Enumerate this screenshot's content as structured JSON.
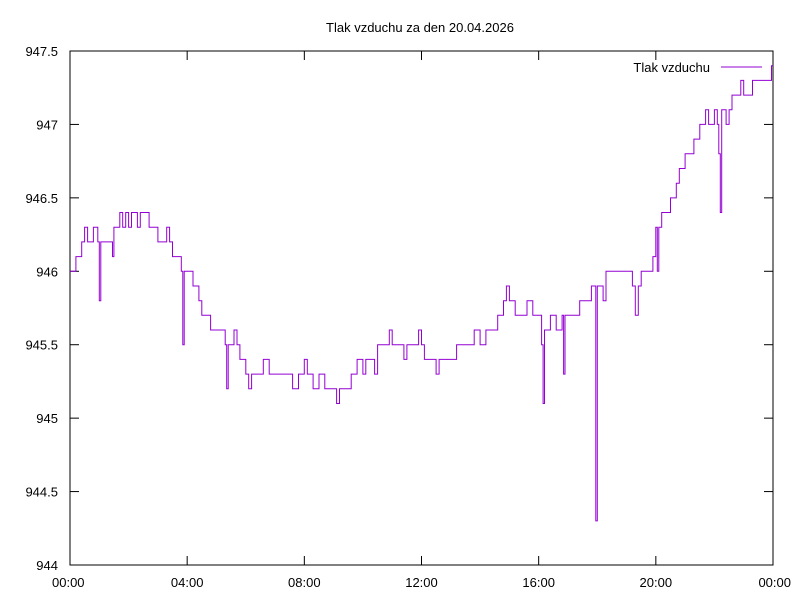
{
  "chart_data": {
    "type": "line",
    "title": "Tlak vzduchu za den 20.04.2026",
    "xlabel": "",
    "ylabel": "",
    "x_ticks": [
      "00:00",
      "04:00",
      "08:00",
      "12:00",
      "16:00",
      "20:00",
      "00:00"
    ],
    "xlim_hours": [
      0,
      24
    ],
    "y_ticks": [
      "944",
      "944.5",
      "945",
      "945.5",
      "946",
      "946.5",
      "947",
      "947.5"
    ],
    "ylim": [
      944,
      947.5
    ],
    "grid": false,
    "legend_position": "top-right",
    "series": [
      {
        "name": "Tlak vzduchu",
        "color": "#9400d3",
        "points": [
          [
            0.0,
            946.0
          ],
          [
            0.2,
            946.1
          ],
          [
            0.4,
            946.2
          ],
          [
            0.5,
            946.3
          ],
          [
            0.6,
            946.2
          ],
          [
            0.8,
            946.3
          ],
          [
            0.95,
            946.2
          ],
          [
            1.0,
            945.8
          ],
          [
            1.05,
            946.2
          ],
          [
            1.2,
            946.2
          ],
          [
            1.4,
            946.2
          ],
          [
            1.45,
            946.1
          ],
          [
            1.5,
            946.3
          ],
          [
            1.6,
            946.3
          ],
          [
            1.7,
            946.4
          ],
          [
            1.8,
            946.3
          ],
          [
            1.9,
            946.4
          ],
          [
            2.0,
            946.3
          ],
          [
            2.1,
            946.4
          ],
          [
            2.2,
            946.4
          ],
          [
            2.3,
            946.3
          ],
          [
            2.4,
            946.4
          ],
          [
            2.6,
            946.4
          ],
          [
            2.7,
            946.3
          ],
          [
            2.9,
            946.3
          ],
          [
            3.0,
            946.2
          ],
          [
            3.2,
            946.2
          ],
          [
            3.3,
            946.3
          ],
          [
            3.4,
            946.2
          ],
          [
            3.5,
            946.1
          ],
          [
            3.7,
            946.1
          ],
          [
            3.8,
            946.0
          ],
          [
            3.85,
            945.5
          ],
          [
            3.9,
            946.0
          ],
          [
            4.1,
            946.0
          ],
          [
            4.2,
            945.9
          ],
          [
            4.4,
            945.8
          ],
          [
            4.5,
            945.7
          ],
          [
            4.7,
            945.7
          ],
          [
            4.8,
            945.6
          ],
          [
            5.0,
            945.6
          ],
          [
            5.2,
            945.6
          ],
          [
            5.3,
            945.5
          ],
          [
            5.35,
            945.2
          ],
          [
            5.4,
            945.5
          ],
          [
            5.5,
            945.5
          ],
          [
            5.6,
            945.6
          ],
          [
            5.7,
            945.5
          ],
          [
            5.8,
            945.4
          ],
          [
            6.0,
            945.3
          ],
          [
            6.1,
            945.2
          ],
          [
            6.2,
            945.3
          ],
          [
            6.4,
            945.3
          ],
          [
            6.6,
            945.4
          ],
          [
            6.8,
            945.3
          ],
          [
            7.0,
            945.3
          ],
          [
            7.4,
            945.3
          ],
          [
            7.6,
            945.2
          ],
          [
            7.8,
            945.3
          ],
          [
            8.0,
            945.4
          ],
          [
            8.1,
            945.3
          ],
          [
            8.3,
            945.2
          ],
          [
            8.5,
            945.3
          ],
          [
            8.7,
            945.2
          ],
          [
            9.0,
            945.2
          ],
          [
            9.1,
            945.1
          ],
          [
            9.2,
            945.2
          ],
          [
            9.5,
            945.2
          ],
          [
            9.6,
            945.3
          ],
          [
            9.8,
            945.4
          ],
          [
            10.0,
            945.3
          ],
          [
            10.1,
            945.4
          ],
          [
            10.3,
            945.4
          ],
          [
            10.4,
            945.3
          ],
          [
            10.5,
            945.5
          ],
          [
            10.7,
            945.5
          ],
          [
            10.8,
            945.5
          ],
          [
            10.9,
            945.6
          ],
          [
            11.0,
            945.5
          ],
          [
            11.2,
            945.5
          ],
          [
            11.4,
            945.4
          ],
          [
            11.5,
            945.5
          ],
          [
            11.8,
            945.5
          ],
          [
            11.9,
            945.6
          ],
          [
            12.0,
            945.5
          ],
          [
            12.1,
            945.4
          ],
          [
            12.4,
            945.4
          ],
          [
            12.5,
            945.3
          ],
          [
            12.6,
            945.4
          ],
          [
            12.8,
            945.4
          ],
          [
            13.0,
            945.4
          ],
          [
            13.2,
            945.5
          ],
          [
            13.6,
            945.5
          ],
          [
            13.7,
            945.5
          ],
          [
            13.8,
            945.6
          ],
          [
            14.0,
            945.5
          ],
          [
            14.2,
            945.6
          ],
          [
            14.4,
            945.6
          ],
          [
            14.6,
            945.7
          ],
          [
            14.8,
            945.8
          ],
          [
            14.9,
            945.9
          ],
          [
            15.0,
            945.8
          ],
          [
            15.2,
            945.7
          ],
          [
            15.4,
            945.7
          ],
          [
            15.6,
            945.8
          ],
          [
            15.8,
            945.7
          ],
          [
            16.0,
            945.7
          ],
          [
            16.1,
            945.5
          ],
          [
            16.15,
            945.1
          ],
          [
            16.2,
            945.6
          ],
          [
            16.3,
            945.6
          ],
          [
            16.4,
            945.7
          ],
          [
            16.6,
            945.6
          ],
          [
            16.8,
            945.7
          ],
          [
            16.85,
            945.3
          ],
          [
            16.9,
            945.7
          ],
          [
            17.0,
            945.7
          ],
          [
            17.2,
            945.7
          ],
          [
            17.4,
            945.8
          ],
          [
            17.6,
            945.8
          ],
          [
            17.8,
            945.9
          ],
          [
            17.9,
            945.9
          ],
          [
            17.95,
            944.3
          ],
          [
            18.0,
            945.9
          ],
          [
            18.1,
            945.9
          ],
          [
            18.2,
            945.8
          ],
          [
            18.3,
            946.0
          ],
          [
            18.6,
            946.0
          ],
          [
            18.8,
            946.0
          ],
          [
            19.0,
            946.0
          ],
          [
            19.2,
            945.9
          ],
          [
            19.3,
            945.7
          ],
          [
            19.4,
            945.9
          ],
          [
            19.5,
            946.0
          ],
          [
            19.7,
            946.0
          ],
          [
            19.8,
            946.0
          ],
          [
            19.9,
            946.1
          ],
          [
            20.0,
            946.3
          ],
          [
            20.05,
            946.0
          ],
          [
            20.1,
            946.3
          ],
          [
            20.2,
            946.4
          ],
          [
            20.4,
            946.4
          ],
          [
            20.5,
            946.5
          ],
          [
            20.7,
            946.6
          ],
          [
            20.8,
            946.7
          ],
          [
            21.0,
            946.8
          ],
          [
            21.2,
            946.8
          ],
          [
            21.3,
            946.9
          ],
          [
            21.5,
            947.0
          ],
          [
            21.7,
            947.1
          ],
          [
            21.8,
            947.0
          ],
          [
            22.0,
            947.1
          ],
          [
            22.1,
            947.0
          ],
          [
            22.15,
            946.8
          ],
          [
            22.2,
            946.4
          ],
          [
            22.25,
            947.1
          ],
          [
            22.4,
            947.0
          ],
          [
            22.5,
            947.1
          ],
          [
            22.6,
            947.2
          ],
          [
            22.8,
            947.2
          ],
          [
            22.9,
            947.3
          ],
          [
            23.0,
            947.2
          ],
          [
            23.2,
            947.2
          ],
          [
            23.3,
            947.3
          ],
          [
            23.5,
            947.3
          ],
          [
            23.7,
            947.3
          ],
          [
            23.85,
            947.3
          ],
          [
            23.95,
            947.4
          ],
          [
            24.0,
            947.4
          ]
        ]
      }
    ]
  }
}
